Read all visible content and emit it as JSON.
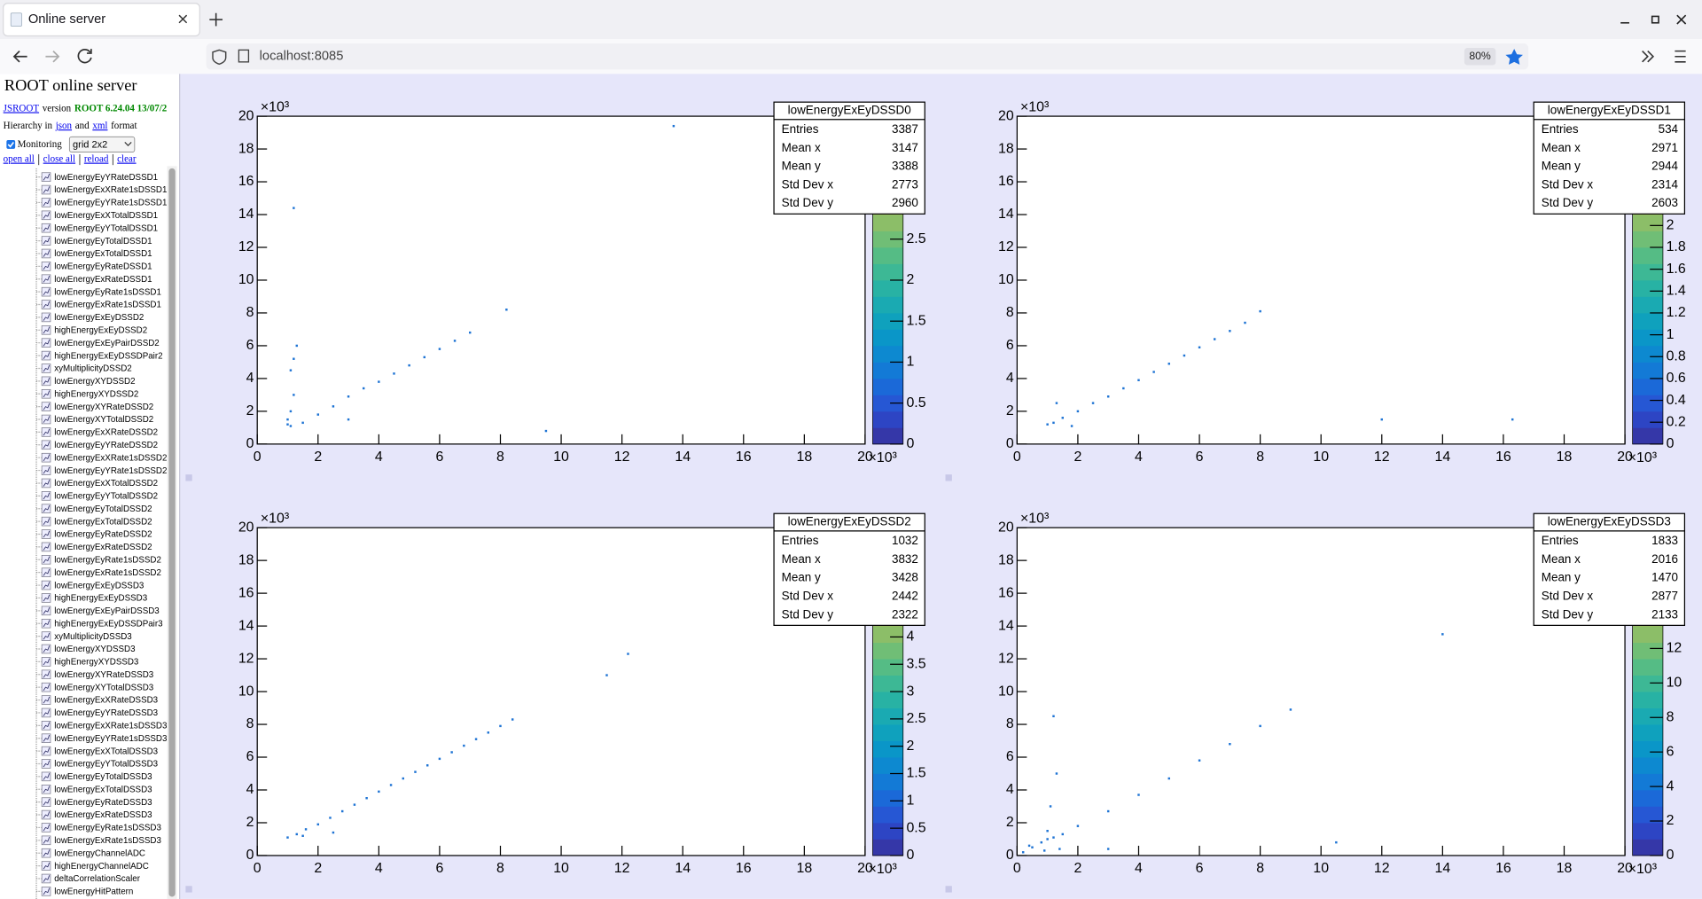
{
  "browser": {
    "tab_title": "Online server",
    "url": "localhost:8085",
    "zoom": "80%"
  },
  "sidebar": {
    "title": "ROOT online server",
    "version": {
      "link": "JSROOT",
      "text": "version",
      "release": "ROOT 6.24.04 13/07/2"
    },
    "hierarchy": {
      "prefix": "Hierarchy in",
      "json": "json",
      "and": "and",
      "xml": "xml",
      "suffix": "format"
    },
    "monitoring": "Monitoring",
    "layout": "grid 2x2",
    "links": [
      "open all",
      "close all",
      "reload",
      "clear"
    ],
    "items": [
      "lowEnergyEyYRateDSSD1",
      "lowEnergyExXRate1sDSSD1",
      "lowEnergyEyYRate1sDSSD1",
      "lowEnergyExXTotalDSSD1",
      "lowEnergyEyYTotalDSSD1",
      "lowEnergyEyTotalDSSD1",
      "lowEnergyExTotalDSSD1",
      "lowEnergyEyRateDSSD1",
      "lowEnergyExRateDSSD1",
      "lowEnergyEyRate1sDSSD1",
      "lowEnergyExRate1sDSSD1",
      "lowEnergyExEyDSSD2",
      "highEnergyExEyDSSD2",
      "lowEnergyExEyPairDSSD2",
      "highEnergyExEyDSSDPair2",
      "xyMultiplicityDSSD2",
      "lowEnergyXYDSSD2",
      "highEnergyXYDSSD2",
      "lowEnergyXYRateDSSD2",
      "lowEnergyXYTotalDSSD2",
      "lowEnergyExXRateDSSD2",
      "lowEnergyEyYRateDSSD2",
      "lowEnergyExXRate1sDSSD2",
      "lowEnergyEyYRate1sDSSD2",
      "lowEnergyExXTotalDSSD2",
      "lowEnergyEyYTotalDSSD2",
      "lowEnergyEyTotalDSSD2",
      "lowEnergyExTotalDSSD2",
      "lowEnergyEyRateDSSD2",
      "lowEnergyExRateDSSD2",
      "lowEnergyEyRate1sDSSD2",
      "lowEnergyExRate1sDSSD2",
      "lowEnergyExEyDSSD3",
      "highEnergyExEyDSSD3",
      "lowEnergyExEyPairDSSD3",
      "highEnergyExEyDSSDPair3",
      "xyMultiplicityDSSD3",
      "lowEnergyXYDSSD3",
      "highEnergyXYDSSD3",
      "lowEnergyXYRateDSSD3",
      "lowEnergyXYTotalDSSD3",
      "lowEnergyExXRateDSSD3",
      "lowEnergyEyYRateDSSD3",
      "lowEnergyExXRate1sDSSD3",
      "lowEnergyEyYRate1sDSSD3",
      "lowEnergyExXTotalDSSD3",
      "lowEnergyEyYTotalDSSD3",
      "lowEnergyEyTotalDSSD3",
      "lowEnergyExTotalDSSD3",
      "lowEnergyEyRateDSSD3",
      "lowEnergyExRateDSSD3",
      "lowEnergyEyRate1sDSSD3",
      "lowEnergyExRate1sDSSD3",
      "lowEnergyChannelADC",
      "highEnergyChannelADC",
      "deltaCorrelationScaler",
      "lowEnergyHitPattern"
    ]
  },
  "chart_data": [
    {
      "type": "scatter",
      "title": "lowEnergyExEyDSSD0",
      "color": "#1f74d4",
      "stats": {
        "labels": [
          "Entries",
          "Mean x",
          "Mean y",
          "Std Dev x",
          "Std Dev y"
        ],
        "values": [
          3387,
          3147,
          3388,
          2773,
          2960
        ]
      },
      "x": [
        1.0,
        1.1,
        1.2,
        1.1,
        1.3,
        1.0,
        1.2,
        1.5,
        2.0,
        2.5,
        3.0,
        3.5,
        4.0,
        4.5,
        5.0,
        5.5,
        6.0,
        6.5,
        7.0,
        8.2,
        1.1,
        1.2,
        3.0,
        9.5,
        13.7
      ],
      "values": [
        1.2,
        2.0,
        3.0,
        4.5,
        6.0,
        1.5,
        5.2,
        1.3,
        1.8,
        2.3,
        2.9,
        3.4,
        3.8,
        4.3,
        4.8,
        5.3,
        5.8,
        6.3,
        6.8,
        8.2,
        1.1,
        14.4,
        1.5,
        0.8,
        19.4
      ],
      "xlim": [
        0,
        20
      ],
      "ylim": [
        0,
        20
      ],
      "xticks": [
        0,
        2,
        4,
        6,
        8,
        10,
        12,
        14,
        16,
        18,
        20
      ],
      "yticks": [
        0,
        2,
        4,
        6,
        8,
        10,
        12,
        14,
        16,
        18,
        20
      ],
      "x_multiplier": "×10³",
      "y_multiplier": "×10³",
      "zlim": [
        0,
        4
      ],
      "zticks": [
        0,
        0.5,
        1,
        1.5,
        2,
        2.5
      ],
      "palette": [
        "#3537a8",
        "#2d45c4",
        "#2657d4",
        "#1b69d8",
        "#137ad6",
        "#0d89d0",
        "#0a96c8",
        "#0fa1bd",
        "#1aaab2",
        "#28b2a4",
        "#3db895",
        "#55bc85",
        "#70be76",
        "#8cbe68",
        "#a6bc5d",
        "#bcb955",
        "#d0b64e",
        "#e2b649",
        "#f1bb3f",
        "#f9cc2c"
      ]
    },
    {
      "type": "scatter",
      "title": "lowEnergyExEyDSSD1",
      "color": "#1f74d4",
      "stats": {
        "labels": [
          "Entries",
          "Mean x",
          "Mean y",
          "Std Dev x",
          "Std Dev y"
        ],
        "values": [
          534,
          2971,
          2944,
          2314,
          2603
        ]
      },
      "x": [
        1.0,
        1.2,
        1.5,
        2.0,
        2.5,
        3.0,
        3.5,
        4.0,
        4.5,
        5.0,
        5.5,
        6.0,
        6.5,
        7.0,
        7.5,
        8.0,
        1.3,
        1.8,
        12.0,
        16.3
      ],
      "values": [
        1.2,
        1.3,
        1.6,
        2.0,
        2.5,
        2.9,
        3.4,
        3.9,
        4.4,
        4.9,
        5.4,
        5.9,
        6.4,
        6.9,
        7.4,
        8.1,
        2.5,
        1.1,
        1.5,
        1.5
      ],
      "xlim": [
        0,
        20
      ],
      "ylim": [
        0,
        20
      ],
      "xticks": [
        0,
        2,
        4,
        6,
        8,
        10,
        12,
        14,
        16,
        18,
        20
      ],
      "yticks": [
        0,
        2,
        4,
        6,
        8,
        10,
        12,
        14,
        16,
        18,
        20
      ],
      "x_multiplier": "×10³",
      "y_multiplier": "×10³",
      "zlim": [
        0,
        3
      ],
      "zticks": [
        0,
        0.2,
        0.4,
        0.6,
        0.8,
        1,
        1.2,
        1.4,
        1.6,
        1.8,
        2
      ],
      "palette": [
        "#3537a8",
        "#2d45c4",
        "#2657d4",
        "#1b69d8",
        "#137ad6",
        "#0d89d0",
        "#0a96c8",
        "#0fa1bd",
        "#1aaab2",
        "#28b2a4",
        "#3db895",
        "#55bc85",
        "#70be76",
        "#8cbe68",
        "#a6bc5d",
        "#bcb955",
        "#d0b64e",
        "#e2b649",
        "#f1bb3f",
        "#f9cc2c"
      ]
    },
    {
      "type": "scatter",
      "title": "lowEnergyExEyDSSD2",
      "color": "#1f74d4",
      "stats": {
        "labels": [
          "Entries",
          "Mean x",
          "Mean y",
          "Std Dev x",
          "Std Dev y"
        ],
        "values": [
          1032,
          3832,
          3428,
          2442,
          2322
        ]
      },
      "x": [
        1.0,
        1.3,
        1.6,
        2.0,
        2.4,
        2.8,
        3.2,
        3.6,
        4.0,
        4.4,
        4.8,
        5.2,
        5.6,
        6.0,
        6.4,
        6.8,
        7.2,
        7.6,
        8.0,
        8.4,
        11.5,
        12.2,
        1.5,
        2.5
      ],
      "values": [
        1.1,
        1.3,
        1.6,
        1.9,
        2.3,
        2.7,
        3.1,
        3.5,
        3.9,
        4.3,
        4.7,
        5.1,
        5.5,
        5.9,
        6.3,
        6.7,
        7.1,
        7.5,
        7.9,
        8.3,
        11.0,
        12.3,
        1.2,
        1.4
      ],
      "xlim": [
        0,
        20
      ],
      "ylim": [
        0,
        20
      ],
      "xticks": [
        0,
        2,
        4,
        6,
        8,
        10,
        12,
        14,
        16,
        18,
        20
      ],
      "yticks": [
        0,
        2,
        4,
        6,
        8,
        10,
        12,
        14,
        16,
        18,
        20
      ],
      "x_multiplier": "×10³",
      "y_multiplier": "×10³",
      "zlim": [
        0,
        6
      ],
      "zticks": [
        0,
        0.5,
        1,
        1.5,
        2,
        2.5,
        3,
        3.5,
        4
      ],
      "palette": [
        "#3537a8",
        "#2d45c4",
        "#2657d4",
        "#1b69d8",
        "#137ad6",
        "#0d89d0",
        "#0a96c8",
        "#0fa1bd",
        "#1aaab2",
        "#28b2a4",
        "#3db895",
        "#55bc85",
        "#70be76",
        "#8cbe68",
        "#a6bc5d",
        "#bcb955",
        "#d0b64e",
        "#e2b649",
        "#f1bb3f",
        "#f9cc2c"
      ]
    },
    {
      "type": "scatter",
      "title": "lowEnergyExEyDSSD3",
      "color": "#1f74d4",
      "stats": {
        "labels": [
          "Entries",
          "Mean x",
          "Mean y",
          "Std Dev x",
          "Std Dev y"
        ],
        "values": [
          1833,
          2016,
          1470,
          2877,
          2133
        ]
      },
      "x": [
        0.2,
        0.5,
        0.8,
        1.0,
        1.2,
        1.5,
        1.1,
        1.3,
        2.0,
        3.0,
        4.0,
        5.0,
        6.0,
        7.0,
        8.0,
        9.0,
        1.2,
        1.0,
        3.0,
        10.5,
        14.0,
        0.4,
        0.9,
        1.4
      ],
      "values": [
        0.2,
        0.5,
        0.8,
        1.0,
        1.1,
        1.3,
        3.0,
        5.0,
        1.8,
        2.7,
        3.7,
        4.7,
        5.8,
        6.8,
        7.9,
        8.9,
        8.5,
        1.5,
        0.4,
        0.8,
        13.5,
        0.6,
        0.3,
        0.4
      ],
      "xlim": [
        0,
        20
      ],
      "ylim": [
        0,
        20
      ],
      "xticks": [
        0,
        2,
        4,
        6,
        8,
        10,
        12,
        14,
        16,
        18,
        20
      ],
      "yticks": [
        0,
        2,
        4,
        6,
        8,
        10,
        12,
        14,
        16,
        18,
        20
      ],
      "x_multiplier": "×10³",
      "y_multiplier": "×10³",
      "zlim": [
        0,
        19
      ],
      "zticks": [
        0,
        2,
        4,
        6,
        8,
        10,
        12
      ],
      "palette": [
        "#3537a8",
        "#2d45c4",
        "#2657d4",
        "#1b69d8",
        "#137ad6",
        "#0d89d0",
        "#0a96c8",
        "#0fa1bd",
        "#1aaab2",
        "#28b2a4",
        "#3db895",
        "#55bc85",
        "#70be76",
        "#8cbe68",
        "#a6bc5d",
        "#bcb955",
        "#d0b64e",
        "#e2b649",
        "#f1bb3f",
        "#f9cc2c"
      ]
    }
  ]
}
